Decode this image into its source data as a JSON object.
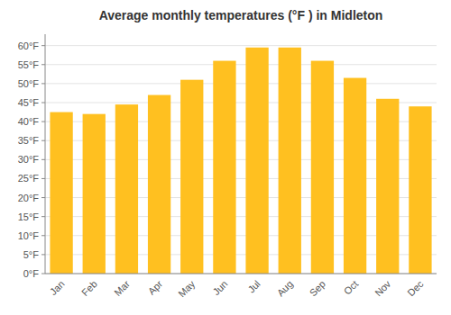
{
  "chart_data": {
    "type": "bar",
    "title": "Average monthly temperatures (°F ) in Midleton",
    "categories": [
      "Jan",
      "Feb",
      "Mar",
      "Apr",
      "May",
      "Jun",
      "Jul",
      "Aug",
      "Sep",
      "Oct",
      "Nov",
      "Dec"
    ],
    "values": [
      42.5,
      42.0,
      44.5,
      47.0,
      51.0,
      56.0,
      59.5,
      59.5,
      56.0,
      51.5,
      46.0,
      44.0
    ],
    "color": "#FFC020",
    "ylim": [
      0,
      63
    ],
    "yticks": [
      {
        "value": 0,
        "label": "0°F"
      },
      {
        "value": 5,
        "label": "5°F"
      },
      {
        "value": 10,
        "label": "10°F"
      },
      {
        "value": 15,
        "label": "15°F"
      },
      {
        "value": 20,
        "label": "20°F"
      },
      {
        "value": 25,
        "label": "25°F"
      },
      {
        "value": 30,
        "label": "30°F"
      },
      {
        "value": 35,
        "label": "35°F"
      },
      {
        "value": 40,
        "label": "40°F"
      },
      {
        "value": 45,
        "label": "45°F"
      },
      {
        "value": 50,
        "label": "50°F"
      },
      {
        "value": 55,
        "label": "55°F"
      },
      {
        "value": 60,
        "label": "60°F"
      }
    ],
    "grid": true
  }
}
